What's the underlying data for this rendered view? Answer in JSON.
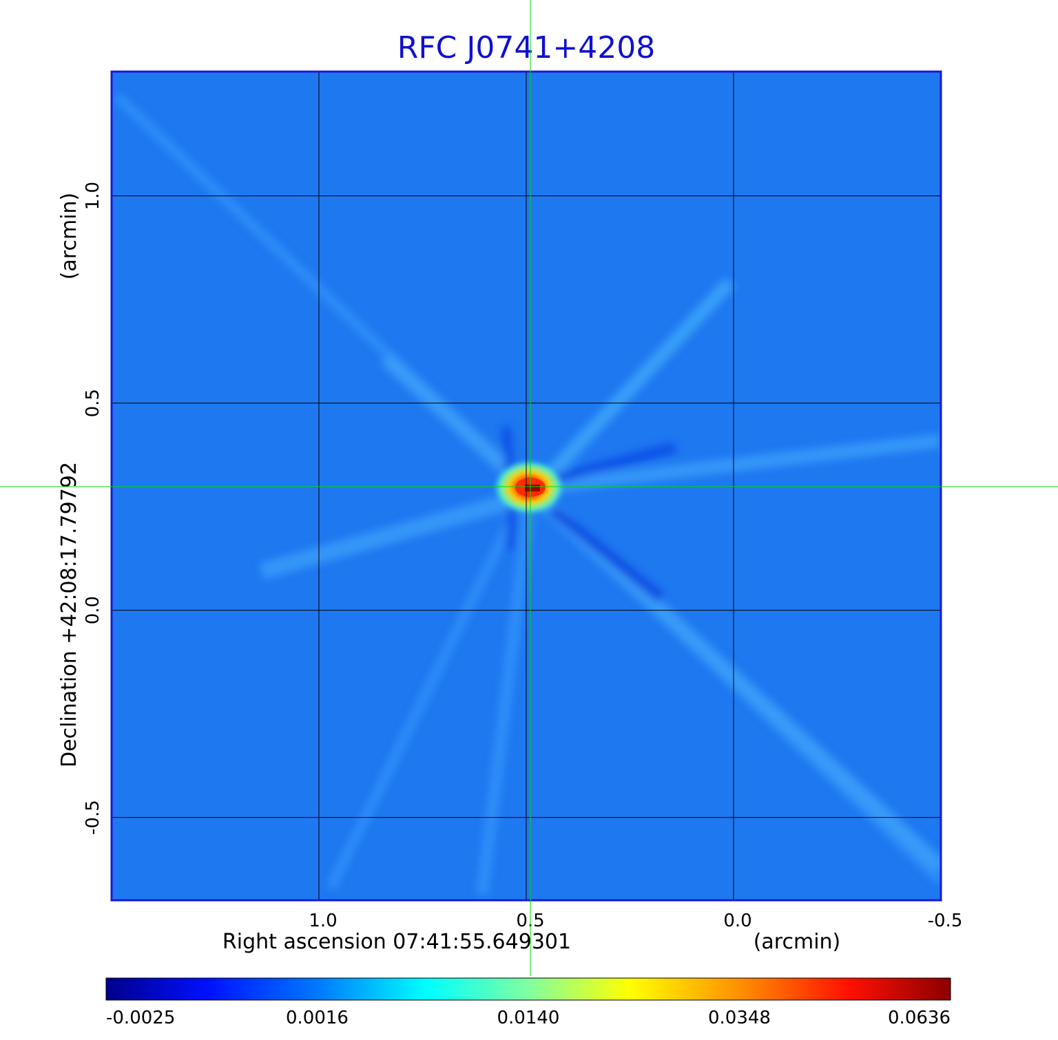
{
  "chart_data": {
    "type": "heatmap",
    "title": "RFC J0741+4208",
    "xlabel": "Right ascension  07:41:55.649301",
    "xunit": "(arcmin)",
    "ylabel": "Declination  +42:08:17.79792",
    "yunit": "(arcmin)",
    "x_ticks": [
      "1.0",
      "0.5",
      "0.0",
      "-0.5"
    ],
    "y_ticks": [
      "1.0",
      "0.5",
      "0.0",
      "-0.5"
    ],
    "x_tick_values": [
      1.0,
      0.5,
      0.0,
      -0.5
    ],
    "y_tick_values": [
      1.0,
      0.5,
      0.0,
      -0.5
    ],
    "xlim": [
      1.5,
      -0.5
    ],
    "ylim": [
      -0.7,
      1.3
    ],
    "grid": true,
    "crosshair": {
      "x": 0.5,
      "y": 0.3,
      "color": "#00dd00"
    },
    "source_peak": {
      "x": 0.5,
      "y": 0.3,
      "value": 0.0636
    },
    "colorbar": {
      "labels": [
        "-0.0025",
        "0.0016",
        "0.0140",
        "0.0348",
        "0.0636"
      ],
      "values": [
        -0.0025,
        0.0016,
        0.014,
        0.0348,
        0.0636
      ],
      "colors": [
        "#00008b",
        "#0030ff",
        "#00e8ff",
        "#ffff00",
        "#ff0000",
        "#8b0000"
      ]
    },
    "colors": {
      "frame": "#1a1ad0",
      "background": "#1e78f0"
    }
  }
}
